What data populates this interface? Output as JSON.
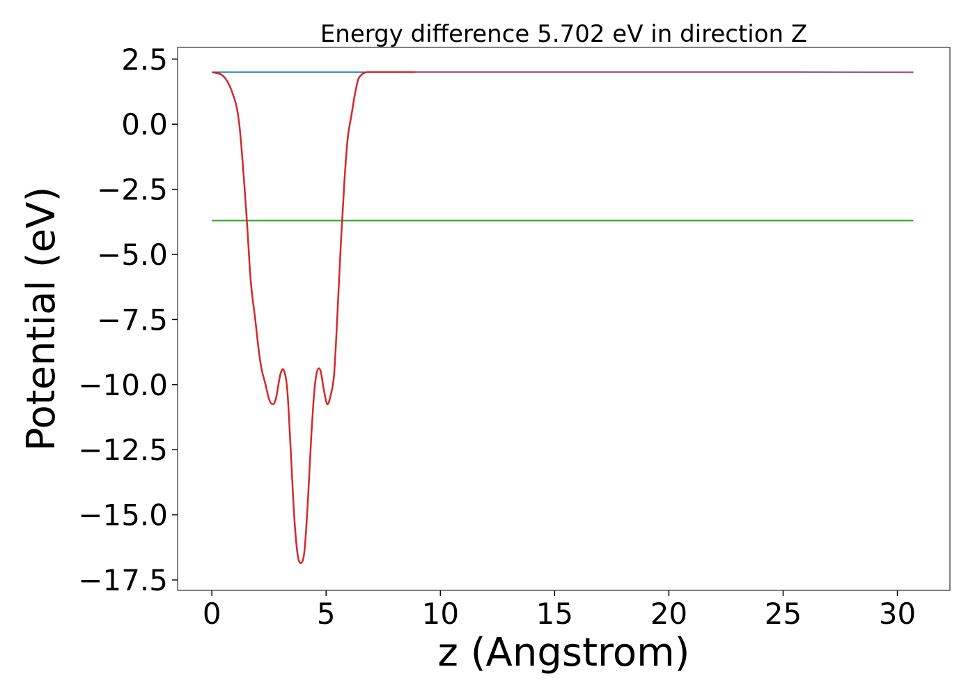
{
  "chart_data": {
    "type": "line",
    "title": "Energy difference 5.702 eV in direction Z",
    "xlabel": "z (Angstrom)",
    "ylabel": "Potential (eV)",
    "xlim": [
      -1.5,
      32.3
    ],
    "ylim": [
      -17.9,
      2.95
    ],
    "xticks": [
      0,
      5,
      10,
      15,
      20,
      25,
      30
    ],
    "xtick_labels": [
      "0",
      "5",
      "10",
      "15",
      "20",
      "25",
      "30"
    ],
    "yticks": [
      2.5,
      0.0,
      -2.5,
      -5.0,
      -7.5,
      -10.0,
      -12.5,
      -15.0,
      -17.5
    ],
    "ytick_labels": [
      "2.5",
      "0.0",
      "−2.5",
      "−5.0",
      "−7.5",
      "−10.0",
      "−12.5",
      "−15.0",
      "−17.5"
    ],
    "grid": false,
    "series": [
      {
        "color": "#1f77b4",
        "x": [
          0,
          30.7
        ],
        "y": [
          2.0,
          2.0
        ]
      },
      {
        "color": "#2ca02c",
        "x": [
          0,
          30.7
        ],
        "y": [
          -3.7,
          -3.7
        ]
      },
      {
        "color": "#d62728",
        "x": [
          0,
          0.5,
          0.9,
          1.2,
          1.5,
          1.7,
          1.9,
          2.0,
          2.1,
          2.2,
          2.35,
          2.5,
          2.65,
          2.8,
          3.0,
          3.15,
          3.3,
          3.45,
          3.6,
          3.75,
          3.9,
          4.05,
          4.2,
          4.35,
          4.48,
          4.6,
          4.75,
          4.9,
          5.05,
          5.2,
          5.35,
          5.5,
          5.65,
          5.8,
          5.95,
          6.1,
          6.25,
          6.4,
          6.55,
          6.7,
          6.8,
          6.9,
          7.0,
          7.2,
          7.5,
          7.8,
          8.2,
          8.6,
          9.0,
          9.5,
          10.0,
          12,
          15,
          20,
          25,
          30.7
        ],
        "y": [
          2.0,
          1.85,
          1.2,
          0.0,
          -3.3,
          -6.0,
          -7.5,
          -8.3,
          -9.0,
          -9.5,
          -10.0,
          -10.55,
          -10.75,
          -10.55,
          -9.6,
          -9.45,
          -10.2,
          -12.5,
          -15.0,
          -16.5,
          -16.85,
          -16.4,
          -14.5,
          -12.0,
          -10.3,
          -9.5,
          -9.45,
          -10.2,
          -10.75,
          -10.4,
          -9.6,
          -7.2,
          -4.5,
          -2.2,
          -0.5,
          0.3,
          1.1,
          1.7,
          1.9,
          1.98,
          2.0,
          2.0,
          2.0,
          2.0,
          2.0,
          2.0,
          2.0,
          2.0,
          2.0,
          2.0,
          2.0,
          2.0,
          2.0,
          2.0,
          2.0,
          1.99
        ]
      },
      {
        "color": "#8c6bb1",
        "x": [
          8.9,
          12,
          16,
          20,
          24,
          28,
          30.7
        ],
        "y": [
          2.0,
          2.0,
          2.0,
          2.0,
          2.0,
          2.0,
          1.99
        ]
      }
    ]
  }
}
